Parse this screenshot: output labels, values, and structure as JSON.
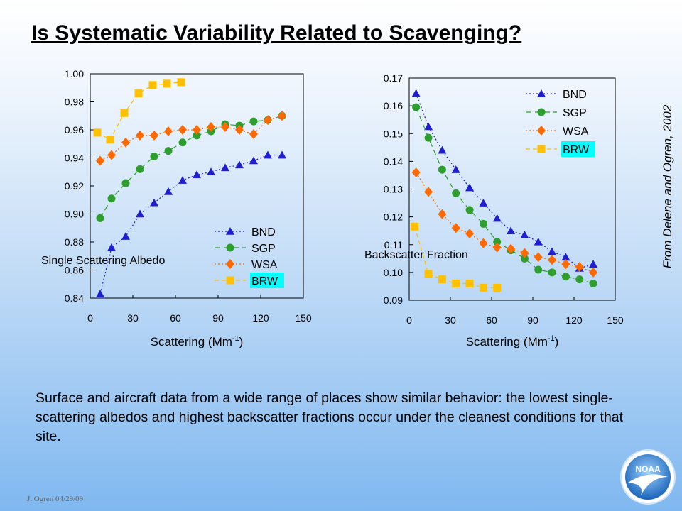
{
  "slide": {
    "title": "Is Systematic Variability Related to Scavenging?",
    "credit": "From Delene and Ogren, 2002",
    "body_text": "Surface and aircraft data from a wide range of places show similar behavior: the lowest single-scattering albedos and highest backscatter fractions occur under the cleanest conditions for that site.",
    "footer": "J. Ogren  04/29/09",
    "logo_text": "NOAA"
  },
  "colors": {
    "BND": "#1f1fd0",
    "SGP": "#2e9e2e",
    "WSA": "#ff6a00",
    "BRW": "#ffc000",
    "legend_highlight": "#00ffff"
  },
  "chart_data": [
    {
      "type": "line",
      "ylabel": "Single Scattering Albedo",
      "xlabel": "Scattering (Mm-1)",
      "xlabel_main": "Scattering (Mm",
      "xlabel_sup": "-1",
      "xlabel_end": ")",
      "xlim": [
        0,
        150
      ],
      "ylim": [
        0.84,
        1.0
      ],
      "xticks": [
        "0",
        "30",
        "60",
        "90",
        "120",
        "150"
      ],
      "yticks": [
        "0.84",
        "0.86",
        "0.88",
        "0.90",
        "0.92",
        "0.94",
        "0.96",
        "0.98",
        "1.00"
      ],
      "grid": false,
      "legend_position": "bottom-right",
      "series": [
        {
          "name": "BND",
          "marker": "triangle",
          "x": [
            7,
            15,
            25,
            35,
            45,
            55,
            65,
            75,
            85,
            95,
            105,
            115,
            125,
            135
          ],
          "y": [
            0.843,
            0.876,
            0.884,
            0.9,
            0.908,
            0.916,
            0.924,
            0.928,
            0.93,
            0.933,
            0.935,
            0.938,
            0.942,
            0.942
          ]
        },
        {
          "name": "SGP",
          "marker": "circle",
          "x": [
            7,
            15,
            25,
            35,
            45,
            55,
            65,
            75,
            85,
            95,
            105,
            115,
            125,
            135
          ],
          "y": [
            0.897,
            0.911,
            0.922,
            0.932,
            0.941,
            0.945,
            0.951,
            0.956,
            0.959,
            0.964,
            0.963,
            0.966,
            0.967,
            0.97
          ]
        },
        {
          "name": "WSA",
          "marker": "diamond",
          "x": [
            7,
            15,
            25,
            35,
            45,
            55,
            65,
            75,
            85,
            95,
            105,
            115,
            125,
            135
          ],
          "y": [
            0.938,
            0.942,
            0.951,
            0.956,
            0.956,
            0.959,
            0.96,
            0.96,
            0.962,
            0.962,
            0.96,
            0.957,
            0.967,
            0.97
          ]
        },
        {
          "name": "BRW",
          "marker": "square",
          "x": [
            5,
            14,
            24,
            34,
            44,
            54,
            64
          ],
          "y": [
            0.958,
            0.953,
            0.972,
            0.986,
            0.992,
            0.993,
            0.994
          ]
        }
      ]
    },
    {
      "type": "line",
      "ylabel": "Backscatter Fraction",
      "xlabel": "Scattering (Mm-1)",
      "xlabel_main": "Scattering  (Mm",
      "xlabel_sup": "-1",
      "xlabel_end": ")",
      "xlim": [
        0,
        150
      ],
      "ylim": [
        0.09,
        0.17
      ],
      "xticks": [
        "0",
        "30",
        "60",
        "90",
        "120",
        "150"
      ],
      "yticks": [
        "0.09",
        "0.10",
        "0.11",
        "0.12",
        "0.13",
        "0.14",
        "0.15",
        "0.16",
        "0.17"
      ],
      "grid": false,
      "legend_position": "top-right",
      "series": [
        {
          "name": "BND",
          "marker": "triangle",
          "x": [
            5,
            14,
            24,
            34,
            44,
            54,
            64,
            74,
            84,
            94,
            104,
            114,
            124,
            134
          ],
          "y": [
            0.1645,
            0.1525,
            0.144,
            0.137,
            0.1305,
            0.125,
            0.1195,
            0.115,
            0.1135,
            0.111,
            0.1075,
            0.1055,
            0.1015,
            0.103
          ]
        },
        {
          "name": "SGP",
          "marker": "circle",
          "x": [
            5,
            14,
            24,
            34,
            44,
            54,
            64,
            74,
            84,
            94,
            104,
            114,
            124,
            134
          ],
          "y": [
            0.1595,
            0.1485,
            0.137,
            0.1285,
            0.1225,
            0.1175,
            0.111,
            0.108,
            0.105,
            0.101,
            0.1,
            0.0985,
            0.0975,
            0.096
          ]
        },
        {
          "name": "WSA",
          "marker": "diamond",
          "x": [
            5,
            14,
            24,
            34,
            44,
            54,
            64,
            74,
            84,
            94,
            104,
            114,
            124,
            134
          ],
          "y": [
            0.136,
            0.129,
            0.121,
            0.116,
            0.114,
            0.1105,
            0.109,
            0.1085,
            0.107,
            0.1055,
            0.1045,
            0.103,
            0.102,
            0.1
          ]
        },
        {
          "name": "BRW",
          "marker": "square",
          "x": [
            4,
            14,
            24,
            34,
            44,
            54,
            64
          ],
          "y": [
            0.1165,
            0.0995,
            0.0975,
            0.096,
            0.096,
            0.0945,
            0.0945
          ]
        }
      ]
    }
  ]
}
